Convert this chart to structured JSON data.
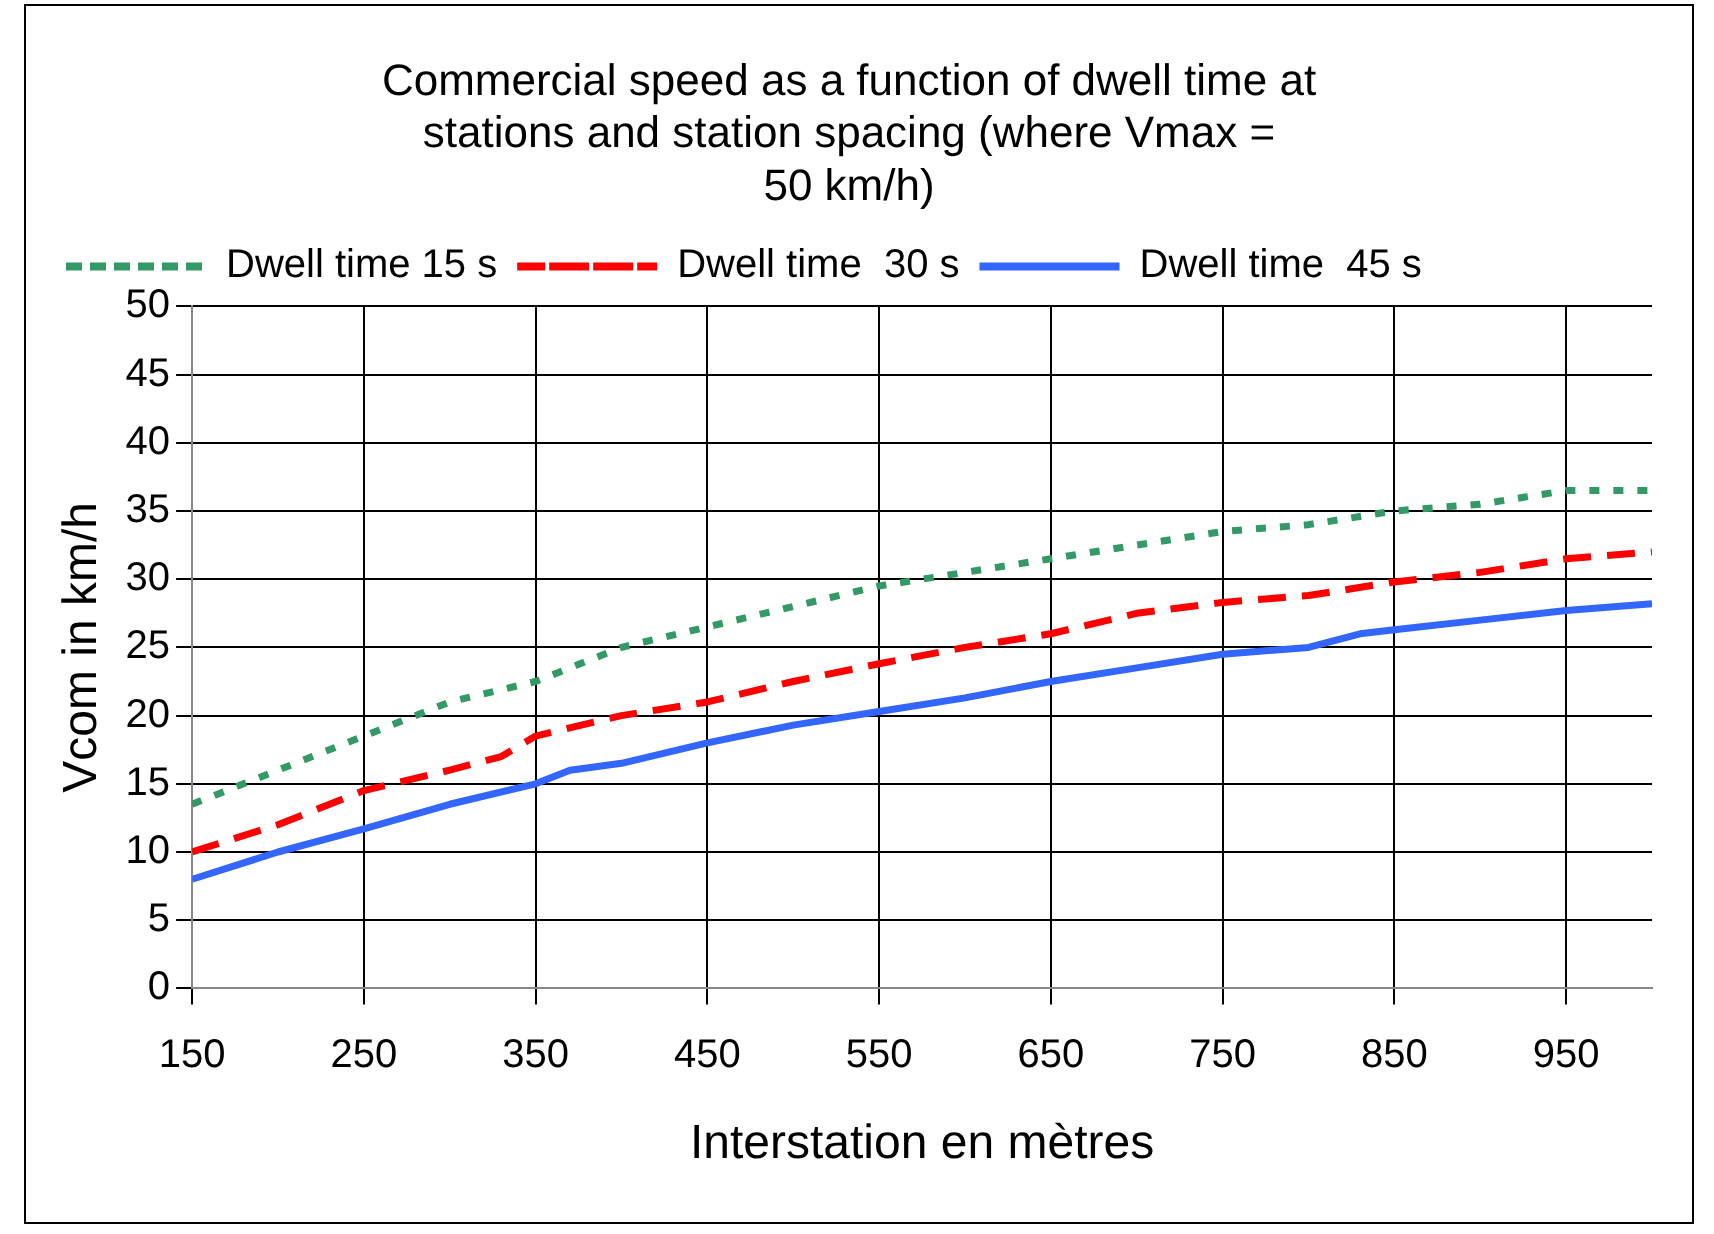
{
  "chart_data": {
    "type": "line",
    "title": [
      "Commercial speed as a function of dwell time at",
      "stations and station spacing (where Vmax =",
      "50 km/h)"
    ],
    "xlabel": "Interstation en mètres",
    "ylabel": "Vcom in km/h",
    "xlim": [
      150,
      1000
    ],
    "xticks": [
      150,
      250,
      350,
      450,
      550,
      650,
      750,
      850,
      950
    ],
    "ylim": [
      0,
      50
    ],
    "yticks": [
      0,
      5,
      10,
      15,
      20,
      25,
      30,
      35,
      40,
      45,
      50
    ],
    "grid": true,
    "legend": "top left",
    "marker": "none",
    "series": [
      {
        "name": "Dwell time 15 s",
        "color": "#339966",
        "line_style": "dotted",
        "x": [
          150,
          200,
          250,
          300,
          350,
          400,
          450,
          500,
          550,
          600,
          650,
          700,
          750,
          800,
          850,
          900,
          950,
          1000
        ],
        "values": [
          13.5,
          16,
          18.5,
          21,
          22.5,
          25,
          26.5,
          28,
          29.5,
          30.5,
          31.5,
          32.5,
          33.5,
          34,
          35,
          35.5,
          36.5,
          36.5
        ]
      },
      {
        "name": "Dwell time  30 s",
        "color": "#ff0000",
        "line_style": "dashed",
        "x": [
          150,
          200,
          250,
          300,
          330,
          350,
          400,
          450,
          500,
          550,
          600,
          650,
          700,
          750,
          800,
          850,
          900,
          950,
          1000
        ],
        "values": [
          10,
          12,
          14.5,
          16,
          17,
          18.5,
          20,
          21,
          22.5,
          23.8,
          25,
          26,
          27.5,
          28.3,
          28.8,
          29.8,
          30.5,
          31.5,
          32
        ]
      },
      {
        "name": "Dwell time  45 s",
        "color": "#3366ff",
        "line_style": "solid",
        "x": [
          150,
          200,
          250,
          300,
          350,
          370,
          400,
          450,
          500,
          550,
          600,
          650,
          700,
          750,
          800,
          830,
          850,
          900,
          950,
          1000
        ],
        "values": [
          8,
          10,
          11.7,
          13.5,
          15,
          16,
          16.5,
          18,
          19.3,
          20.3,
          21.3,
          22.5,
          23.5,
          24.5,
          25,
          26,
          26.3,
          27,
          27.7,
          28.2
        ]
      }
    ]
  }
}
